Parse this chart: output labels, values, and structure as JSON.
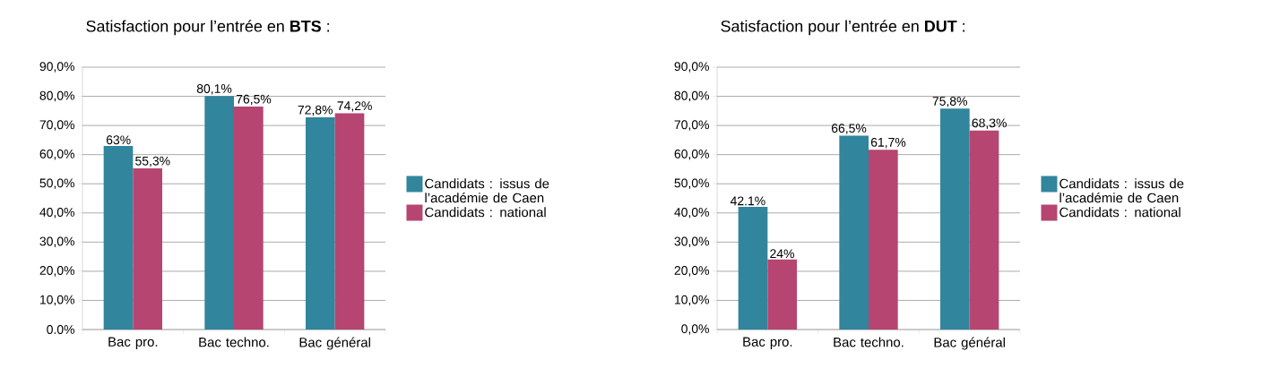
{
  "chart_data": [
    {
      "type": "bar",
      "title": "Satisfaction pour l’entrée en **BTS**  :",
      "categories": [
        "Bac pro.",
        "Bac techno.",
        "Bac général"
      ],
      "series": [
        {
          "name": "Candidats : issus de l’académie de Caen",
          "color": "#31859c",
          "values": [
            63,
            80.1,
            72.8
          ],
          "value_labels": [
            "63%",
            "80,1%",
            "72,8%"
          ]
        },
        {
          "name": "Candidats : national",
          "color": "#b64571",
          "values": [
            55.3,
            76.5,
            74.2
          ],
          "value_labels": [
            "55,3%",
            "76,5%",
            "74,2%"
          ]
        }
      ],
      "ylim": [
        0,
        90
      ],
      "yticks": [
        {
          "value": 0,
          "label": "0.0%"
        },
        {
          "value": 10,
          "label": "10,0%"
        },
        {
          "value": 20,
          "label": "20,0%"
        },
        {
          "value": 30,
          "label": "30,0%"
        },
        {
          "value": 40,
          "label": "40,0%"
        },
        {
          "value": 50,
          "label": "50,0%"
        },
        {
          "value": 60,
          "label": "60,0%"
        },
        {
          "value": 70,
          "label": "70,0%"
        },
        {
          "value": 80,
          "label": "80,0%"
        },
        {
          "value": 90,
          "label": "90,0%"
        }
      ],
      "grid": "y",
      "legend": "right"
    },
    {
      "type": "bar",
      "title": "Satisfaction pour l’entrée en **DUT** :",
      "categories": [
        "Bac pro.",
        "Bac techno.",
        "Bac général"
      ],
      "series": [
        {
          "name": "Candidats : issus de l’académie de Caen",
          "color": "#31859c",
          "values": [
            42.1,
            66.5,
            75.8
          ],
          "value_labels": [
            "42.1%",
            "66,5%",
            "75,8%"
          ]
        },
        {
          "name": "Candidats : national",
          "color": "#b64571",
          "values": [
            24,
            61.7,
            68.3
          ],
          "value_labels": [
            "24%",
            "61,7%",
            "68,3%"
          ]
        }
      ],
      "ylim": [
        0,
        90
      ],
      "yticks": [
        {
          "value": 0,
          "label": "0,0%"
        },
        {
          "value": 10,
          "label": "10,0%"
        },
        {
          "value": 20,
          "label": "20,0%"
        },
        {
          "value": 30,
          "label": "30,0%"
        },
        {
          "value": 40,
          "label": "40,0%"
        },
        {
          "value": 50,
          "label": "50,0%"
        },
        {
          "value": 60,
          "label": "60,0%"
        },
        {
          "value": 70,
          "label": "70,0%"
        },
        {
          "value": 80,
          "label": "80,0%"
        },
        {
          "value": 90,
          "label": "90,0%"
        }
      ],
      "grid": "y",
      "legend": "right"
    }
  ]
}
